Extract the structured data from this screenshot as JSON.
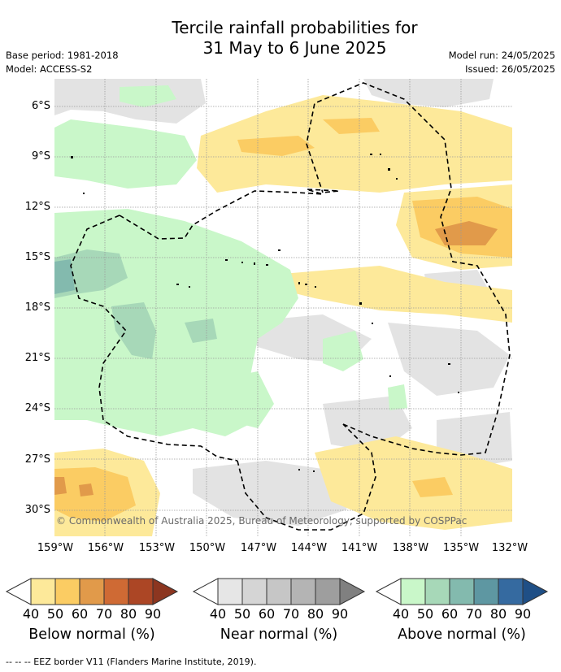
{
  "title_line1": "Tercile rainfall probabilities for",
  "title_line2": "31 May to 6 June 2025",
  "base_period": "Base period: 1981-2018",
  "model": "Model: ACCESS-S2",
  "model_run": "Model run: 24/05/2025",
  "issued": "Issued: 26/05/2025",
  "credit": "© Commonwealth of Australia 2025, Bureau of Meteorology, supported by COSPPac",
  "footer_note": "-- -- -- EEZ border V11 (Flanders Marine Institute, 2019).",
  "map": {
    "lon_range": [
      -159,
      -132
    ],
    "lat_range": [
      -31.5,
      -4.5
    ],
    "lat_ticks": [
      "6°S",
      "9°S",
      "12°S",
      "15°S",
      "18°S",
      "21°S",
      "24°S",
      "27°S",
      "30°S"
    ],
    "lon_ticks": [
      "159°W",
      "156°W",
      "153°W",
      "150°W",
      "147°W",
      "144°W",
      "141°W",
      "138°W",
      "135°W",
      "132°W"
    ],
    "gridlines": true,
    "colors": {
      "below_40": "#fde99a",
      "below_50": "#fbcc63",
      "below_60": "#e19a4a",
      "below_70": "#cf6a34",
      "below_80": "#ac4625",
      "near_40": "#e3e3e3",
      "near_50": "#d5d5d5",
      "near_60": "#c6c6c6",
      "near_70": "#b4b4b4",
      "near_80": "#9e9e9e",
      "above_40": "#c9f7c9",
      "above_50": "#a7d8b8",
      "above_60": "#83baae",
      "above_70": "#5e97a2",
      "above_80": "#356aa0"
    }
  },
  "colorbars": [
    {
      "label": "Below normal (%)",
      "ticks": [
        "40",
        "50",
        "60",
        "70",
        "80",
        "90"
      ],
      "colors": [
        "#ffffff",
        "#fde99a",
        "#fbcc63",
        "#e19a4a",
        "#cf6a34",
        "#ac4625",
        "#8c3620"
      ]
    },
    {
      "label": "Near normal (%)",
      "ticks": [
        "40",
        "50",
        "60",
        "70",
        "80",
        "90"
      ],
      "colors": [
        "#ffffff",
        "#e6e6e6",
        "#d5d5d5",
        "#c6c6c6",
        "#b4b4b4",
        "#9e9e9e",
        "#808080"
      ]
    },
    {
      "label": "Above normal (%)",
      "ticks": [
        "40",
        "50",
        "60",
        "70",
        "80",
        "90"
      ],
      "colors": [
        "#ffffff",
        "#c9f7c9",
        "#a7d8b8",
        "#83baae",
        "#5e97a2",
        "#356aa0",
        "#1f4f86"
      ]
    }
  ]
}
